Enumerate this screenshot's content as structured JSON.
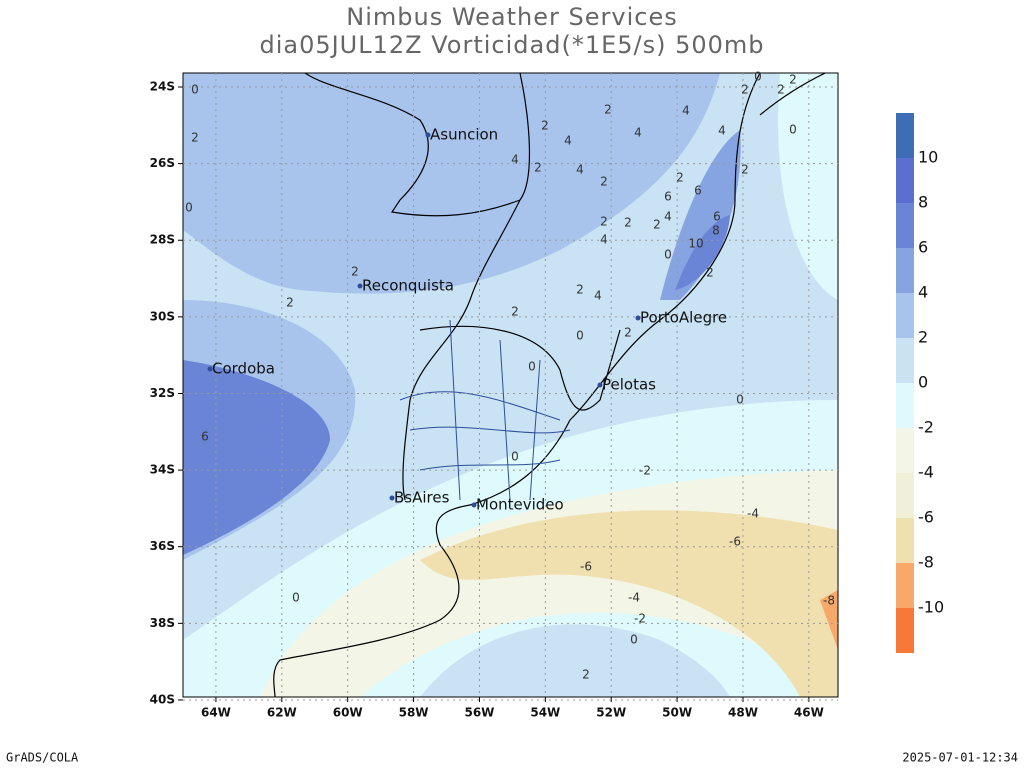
{
  "title": "Nimbus Weather Services",
  "subtitle": "dia05JUL12Z Vorticidad(*1E5/s) 500mb",
  "xticks": [
    {
      "value": -64,
      "label": "64W"
    },
    {
      "value": -62,
      "label": "62W"
    },
    {
      "value": -60,
      "label": "60W"
    },
    {
      "value": -58,
      "label": "58W"
    },
    {
      "value": -56,
      "label": "56W"
    },
    {
      "value": -54,
      "label": "54W"
    },
    {
      "value": -52,
      "label": "52W"
    },
    {
      "value": -50,
      "label": "50W"
    },
    {
      "value": -48,
      "label": "48W"
    },
    {
      "value": -46,
      "label": "46W"
    }
  ],
  "yticks": [
    {
      "value": -24,
      "label": "24S"
    },
    {
      "value": -26,
      "label": "26S"
    },
    {
      "value": -28,
      "label": "28S"
    },
    {
      "value": -30,
      "label": "30S"
    },
    {
      "value": -32,
      "label": "32S"
    },
    {
      "value": -34,
      "label": "34S"
    },
    {
      "value": -36,
      "label": "36S"
    },
    {
      "value": -38,
      "label": "38S"
    },
    {
      "value": -40,
      "label": "40S"
    }
  ],
  "cities": [
    "Asuncion",
    "Reconquista",
    "PortoAlegre",
    "Cordoba",
    "Pelotas",
    "BsAires",
    "Montevideo"
  ],
  "contour_labels": [
    0,
    2,
    0,
    2,
    2,
    2,
    4,
    2,
    4,
    4,
    4,
    2,
    4,
    2,
    2,
    6,
    6,
    4,
    2,
    0,
    2,
    2,
    0,
    2,
    2,
    2,
    2,
    4,
    6,
    8,
    10,
    0,
    2,
    4,
    2,
    4,
    2,
    0,
    2,
    0,
    0,
    6,
    0,
    -2,
    -4,
    -6,
    -6,
    0,
    -4,
    -2,
    0,
    2,
    -8
  ],
  "colorbar": {
    "labels": [
      10,
      8,
      6,
      4,
      2,
      0,
      -2,
      -4,
      -6,
      -8,
      -10
    ],
    "colors": [
      "#3d6db5",
      "#5a6fd0",
      "#6b85d6",
      "#87a4e2",
      "#a9c4ec",
      "#c9e3f4",
      "#defafc",
      "#f3f6e6",
      "#f0f0d8",
      "#f0e0b0",
      "#f8a868",
      "#f87838"
    ]
  },
  "footer_left": "GrADS/COLA",
  "footer_right": "2025-07-01-12:34"
}
